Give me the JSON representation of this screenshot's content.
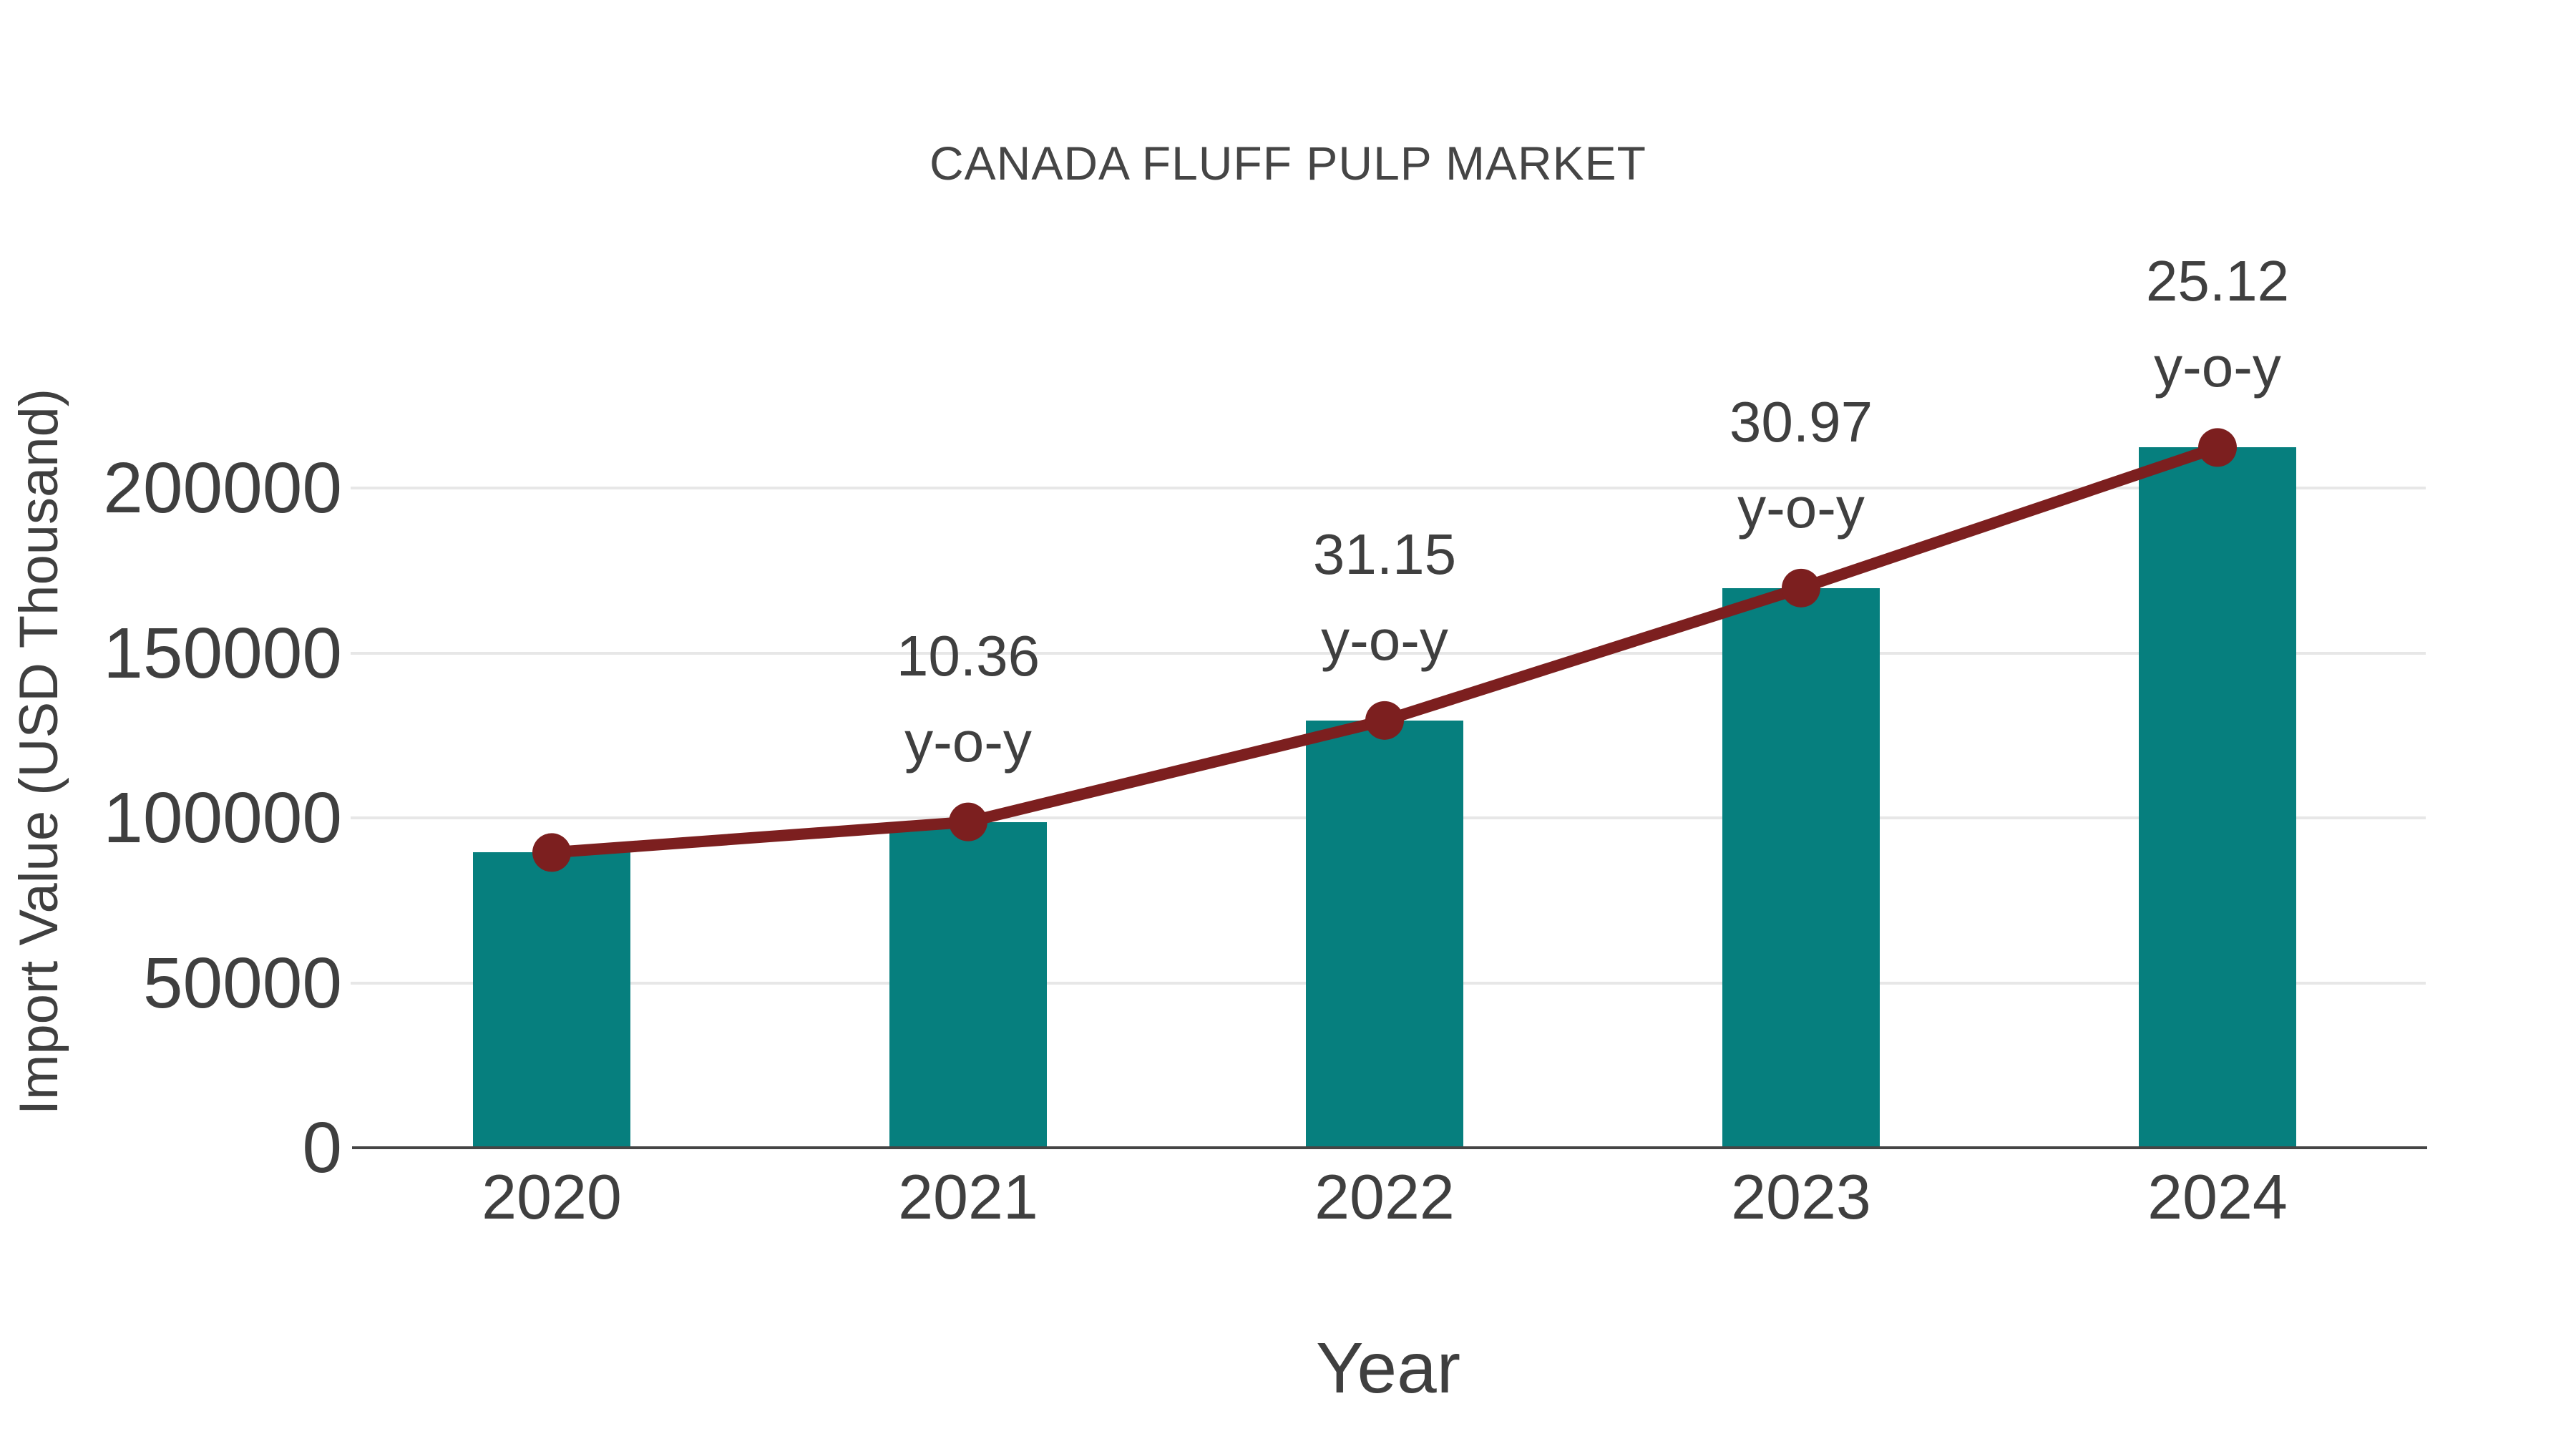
{
  "title": "CANADA FLUFF PULP MARKET",
  "chart_data": {
    "type": "bar",
    "title": "CANADA FLUFF PULP MARKET",
    "categories": [
      "2020",
      "2021",
      "2022",
      "2023",
      "2024"
    ],
    "series": [
      {
        "name": "Import Value",
        "type": "bar",
        "color": "#067f7e",
        "values": [
          89500,
          98770,
          129540,
          169660,
          212280
        ]
      },
      {
        "name": "y-o-y growth",
        "type": "line",
        "color": "#7c1f1f",
        "point_labels": [
          "",
          "10.36",
          "31.15",
          "30.97",
          "25.12"
        ],
        "point_label_suffix": "y-o-y"
      }
    ],
    "xlabel": "Year",
    "ylabel": "Import Value (USD Thousand)",
    "yticks": [
      "0",
      "50000",
      "100000",
      "150000",
      "200000"
    ],
    "ytick_values": [
      0,
      50000,
      100000,
      150000,
      200000
    ],
    "ylim": [
      0,
      250000
    ],
    "grid": "horizontal",
    "legend": "none"
  }
}
